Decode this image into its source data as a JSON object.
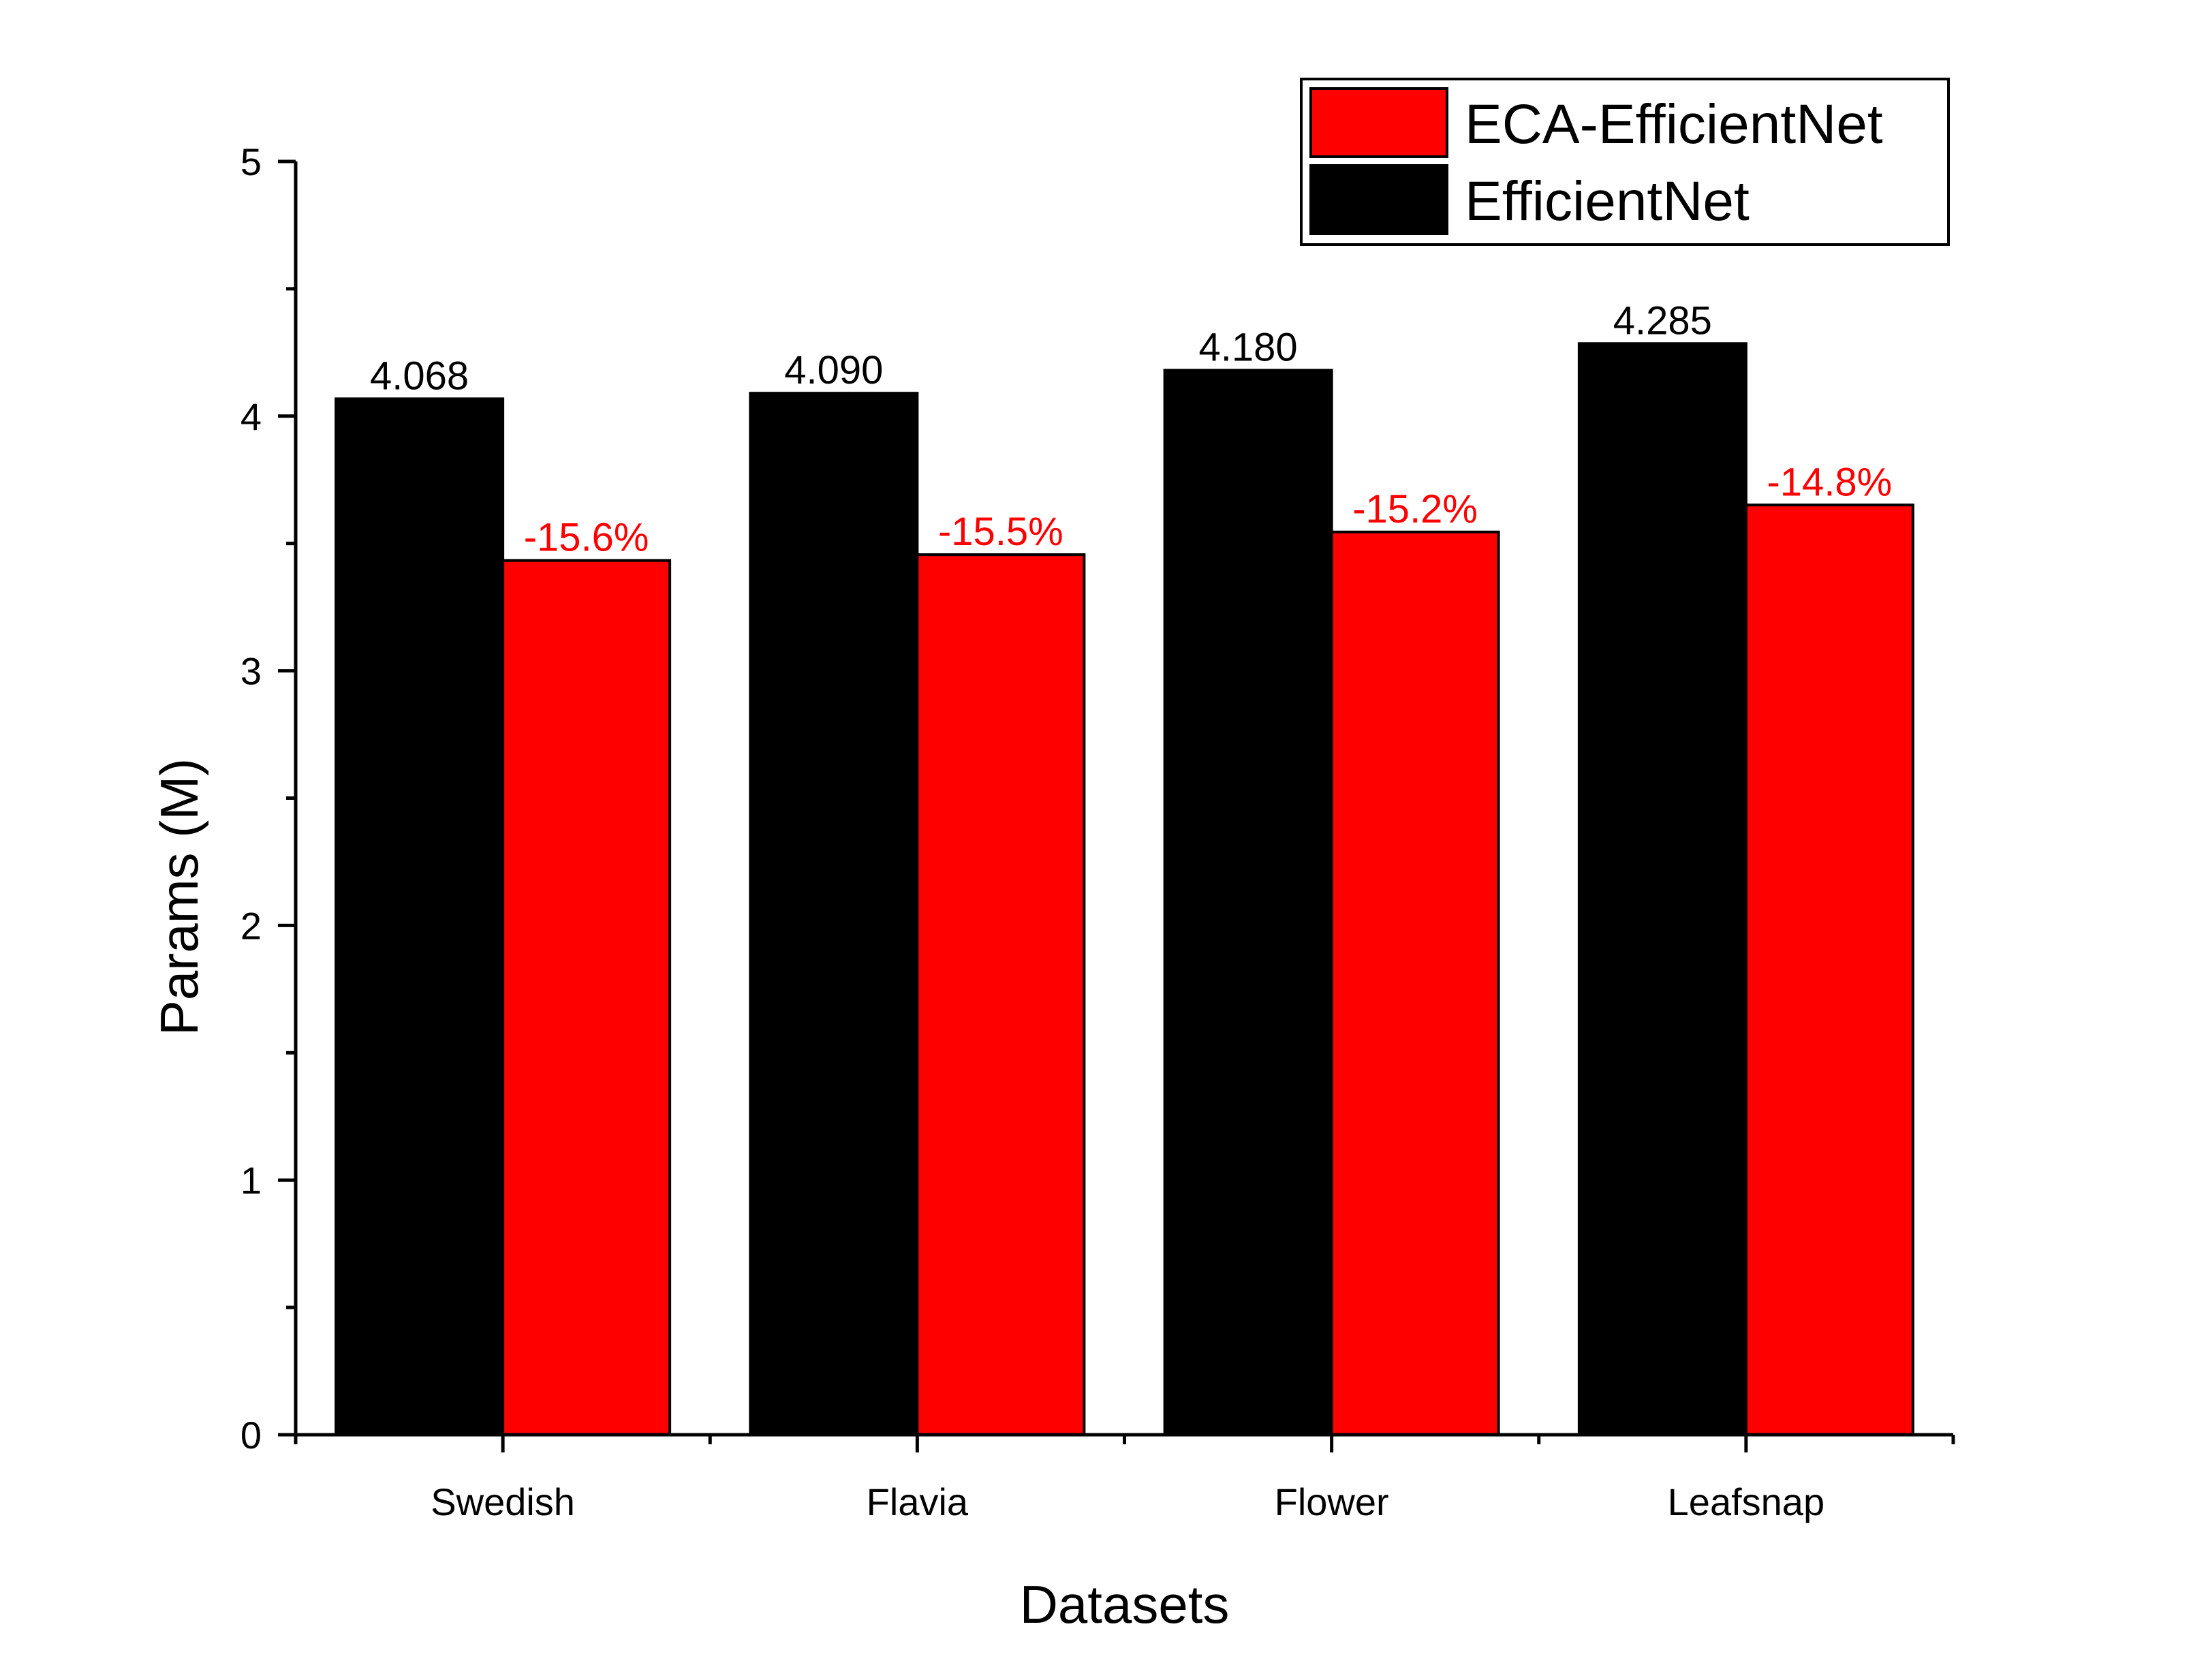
{
  "chart_data": {
    "type": "bar",
    "title": "",
    "xlabel": "Datasets",
    "ylabel": "Params (M)",
    "ylim": [
      0,
      5
    ],
    "yticks": [
      0,
      1,
      2,
      3,
      4,
      5
    ],
    "grid": false,
    "legend_position": "top-right",
    "categories": [
      "Swedish",
      "Flavia",
      "Flower",
      "Leafsnap"
    ],
    "series": [
      {
        "name": "EfficientNet",
        "color": "#000000",
        "values": [
          4.068,
          4.09,
          4.18,
          4.285
        ],
        "labels": [
          "4.068",
          "4.090",
          "4.180",
          "4.285"
        ],
        "label_color": "#000000"
      },
      {
        "name": "ECA-EfficientNet",
        "color": "#ff0000",
        "values": [
          3.433,
          3.456,
          3.545,
          3.651
        ],
        "labels": [
          "-15.6%",
          "-15.5%",
          "-15.2%",
          "-14.8%"
        ],
        "label_color": "#ff0000"
      }
    ],
    "legend_order": [
      "ECA-EfficientNet",
      "EfficientNet"
    ]
  }
}
